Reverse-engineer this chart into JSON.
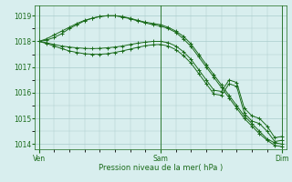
{
  "title": "",
  "xlabel": "Pression niveau de la mer( hPa )",
  "ylabel": "",
  "bg_color": "#d8eeee",
  "grid_color": "#aacccc",
  "line_color": "#1a6b1a",
  "ylim": [
    1013.8,
    1019.4
  ],
  "yticks": [
    1014,
    1015,
    1016,
    1017,
    1018,
    1019
  ],
  "xtick_labels": [
    "Ven",
    "Sam",
    "Dim"
  ],
  "xtick_positions": [
    0,
    16,
    32
  ],
  "num_points": 33,
  "series": [
    [
      1018.0,
      1018.1,
      1018.25,
      1018.4,
      1018.55,
      1018.7,
      1018.82,
      1018.9,
      1018.97,
      1019.0,
      1019.0,
      1018.97,
      1018.9,
      1018.82,
      1018.75,
      1018.7,
      1018.65,
      1018.55,
      1018.4,
      1018.2,
      1017.9,
      1017.5,
      1017.1,
      1016.7,
      1016.3,
      1015.9,
      1015.5,
      1015.1,
      1014.8,
      1014.5,
      1014.2,
      1014.05,
      1014.0
    ],
    [
      1018.0,
      1018.05,
      1018.15,
      1018.3,
      1018.5,
      1018.65,
      1018.8,
      1018.9,
      1018.97,
      1019.0,
      1019.0,
      1018.95,
      1018.88,
      1018.8,
      1018.72,
      1018.65,
      1018.6,
      1018.5,
      1018.35,
      1018.1,
      1017.8,
      1017.4,
      1017.0,
      1016.6,
      1016.2,
      1015.8,
      1015.4,
      1015.0,
      1014.7,
      1014.4,
      1014.15,
      1013.95,
      1013.9
    ],
    [
      1018.0,
      1017.95,
      1017.88,
      1017.82,
      1017.78,
      1017.75,
      1017.73,
      1017.72,
      1017.73,
      1017.75,
      1017.78,
      1017.82,
      1017.88,
      1017.93,
      1017.97,
      1018.0,
      1018.0,
      1017.95,
      1017.82,
      1017.6,
      1017.3,
      1016.9,
      1016.5,
      1016.1,
      1016.05,
      1016.5,
      1016.4,
      1015.4,
      1015.1,
      1015.0,
      1014.7,
      1014.25,
      1014.3
    ],
    [
      1018.0,
      1017.92,
      1017.82,
      1017.72,
      1017.63,
      1017.57,
      1017.52,
      1017.5,
      1017.5,
      1017.52,
      1017.57,
      1017.63,
      1017.7,
      1017.77,
      1017.83,
      1017.87,
      1017.88,
      1017.82,
      1017.68,
      1017.45,
      1017.15,
      1016.75,
      1016.35,
      1015.95,
      1015.9,
      1016.35,
      1016.25,
      1015.2,
      1014.9,
      1014.8,
      1014.5,
      1014.1,
      1014.15
    ]
  ]
}
